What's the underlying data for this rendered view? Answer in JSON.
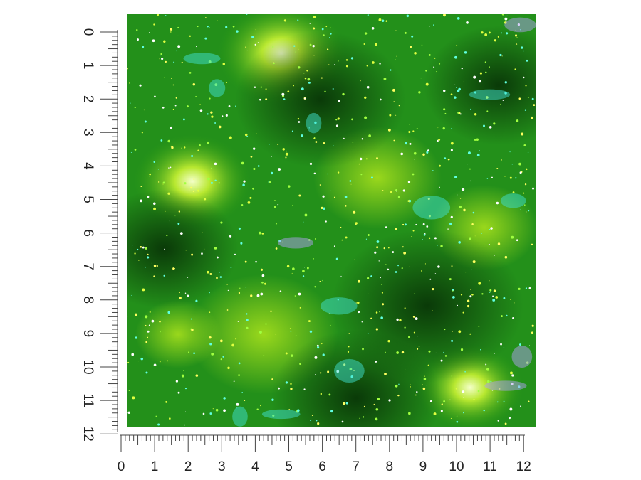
{
  "ruler_left": {
    "labels": [
      "0",
      "1",
      "2",
      "3",
      "4",
      "5",
      "6",
      "7",
      "8",
      "9",
      "10",
      "11",
      "12"
    ]
  },
  "ruler_bottom": {
    "labels": [
      "0",
      "1",
      "2",
      "3",
      "4",
      "5",
      "6",
      "7",
      "8",
      "9",
      "10",
      "11",
      "12"
    ]
  }
}
